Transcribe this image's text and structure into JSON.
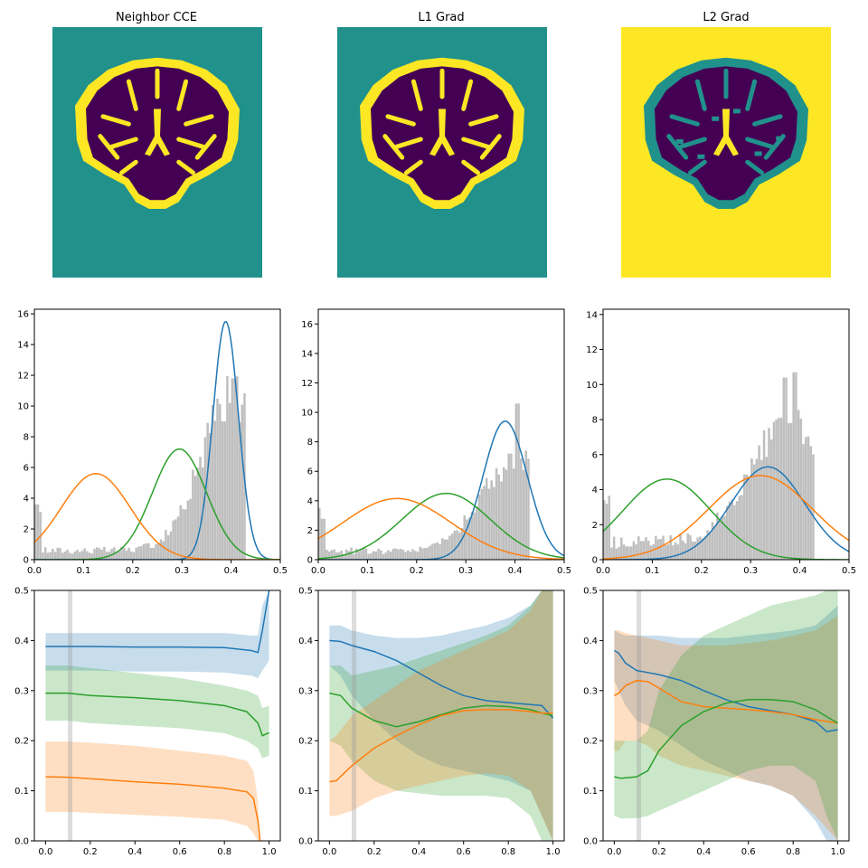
{
  "colors": {
    "viridis_dark": "#440154",
    "viridis_mid": "#21918c",
    "viridis_bright": "#fde725",
    "blue": "#1f77b4",
    "orange": "#ff7f0e",
    "green": "#2ca02c",
    "hist_gray": "#bfbfbf"
  },
  "chart_data": [
    {
      "type": "image",
      "title": "Neighbor CCE",
      "background": "teal",
      "brain_fill": "dark",
      "cortex": "yellow"
    },
    {
      "type": "image",
      "title": "L1 Grad",
      "background": "teal",
      "brain_fill": "dark",
      "cortex": "yellow"
    },
    {
      "type": "image",
      "title": "L2 Grad",
      "background": "yellow",
      "brain_fill": "dark",
      "cortex": "teal"
    },
    {
      "type": "histogram+line",
      "xlim": [
        0,
        0.5
      ],
      "ylim": [
        0,
        16.3
      ],
      "xticks": [
        0,
        0.1,
        0.2,
        0.3,
        0.4,
        0.5
      ],
      "yticks": [
        0,
        2,
        4,
        6,
        8,
        10,
        12,
        14,
        16
      ],
      "gaussians": [
        {
          "color": "blue",
          "mu": 0.389,
          "sigma": 0.026,
          "peak": 15.5
        },
        {
          "color": "green",
          "mu": 0.295,
          "sigma": 0.055,
          "peak": 7.2
        },
        {
          "color": "orange",
          "mu": 0.125,
          "sigma": 0.07,
          "peak": 5.6
        }
      ],
      "hist": {
        "low_level": 0.6,
        "peak_center": 0.405,
        "peak_height": 10.5,
        "spread": 0.065,
        "spikes": [
          [
            0.405,
            11.8
          ],
          [
            0.398,
            10.2
          ],
          [
            0.385,
            9.0
          ]
        ],
        "cutoff": 0.43
      }
    },
    {
      "type": "histogram+line",
      "xlim": [
        0,
        0.5
      ],
      "ylim": [
        0,
        17
      ],
      "xticks": [
        0,
        0.1,
        0.2,
        0.3,
        0.4,
        0.5
      ],
      "yticks": [
        0,
        2,
        4,
        6,
        8,
        10,
        12,
        14,
        16
      ],
      "gaussians": [
        {
          "color": "blue",
          "mu": 0.38,
          "sigma": 0.045,
          "peak": 9.4
        },
        {
          "color": "green",
          "mu": 0.26,
          "sigma": 0.09,
          "peak": 4.5
        },
        {
          "color": "orange",
          "mu": 0.16,
          "sigma": 0.11,
          "peak": 4.15
        }
      ],
      "hist": {
        "low_level": 0.6,
        "peak_center": 0.4,
        "peak_height": 6.2,
        "spread": 0.07,
        "spikes": [
          [
            0.405,
            10.6
          ],
          [
            0.39,
            7.2
          ]
        ],
        "cutoff": 0.43
      }
    },
    {
      "type": "histogram+line",
      "xlim": [
        0,
        0.5
      ],
      "ylim": [
        0,
        14.3
      ],
      "xticks": [
        0,
        0.1,
        0.2,
        0.3,
        0.4,
        0.5
      ],
      "yticks": [
        0,
        2,
        4,
        6,
        8,
        10,
        12,
        14
      ],
      "gaussians": [
        {
          "color": "blue",
          "mu": 0.335,
          "sigma": 0.075,
          "peak": 5.3
        },
        {
          "color": "orange",
          "mu": 0.32,
          "sigma": 0.105,
          "peak": 4.8
        },
        {
          "color": "green",
          "mu": 0.13,
          "sigma": 0.09,
          "peak": 4.6
        }
      ],
      "hist": {
        "low_level": 1.0,
        "peak_center": 0.38,
        "peak_height": 6.8,
        "spread": 0.08,
        "spikes": [
          [
            0.39,
            10.7
          ],
          [
            0.37,
            10.4
          ],
          [
            0.36,
            8.1
          ],
          [
            0.38,
            7.8
          ]
        ],
        "cutoff": 0.43
      }
    },
    {
      "type": "line+band",
      "xlim": [
        -0.05,
        1.05
      ],
      "ylim": [
        0,
        0.5
      ],
      "xticks": [
        0,
        0.2,
        0.4,
        0.6,
        0.8,
        1.0
      ],
      "yticks": [
        0,
        0.1,
        0.2,
        0.3,
        0.4,
        0.5
      ],
      "vline_x": 0.11,
      "series": [
        {
          "color": "blue",
          "x": [
            0,
            0.2,
            0.4,
            0.6,
            0.8,
            0.92,
            0.95,
            0.97,
            1.0
          ],
          "y": [
            0.388,
            0.388,
            0.387,
            0.387,
            0.386,
            0.38,
            0.376,
            0.42,
            0.5
          ],
          "lo": [
            0.34,
            0.34,
            0.338,
            0.338,
            0.336,
            0.33,
            0.325,
            0.34,
            0.36
          ],
          "hi": [
            0.415,
            0.415,
            0.415,
            0.415,
            0.415,
            0.41,
            0.41,
            0.47,
            0.5
          ]
        },
        {
          "color": "green",
          "x": [
            0,
            0.1,
            0.2,
            0.4,
            0.6,
            0.8,
            0.9,
            0.95,
            0.97,
            1.0
          ],
          "y": [
            0.295,
            0.295,
            0.29,
            0.286,
            0.28,
            0.27,
            0.258,
            0.235,
            0.21,
            0.216
          ],
          "lo": [
            0.24,
            0.24,
            0.235,
            0.23,
            0.225,
            0.215,
            0.2,
            0.185,
            0.165,
            0.17
          ],
          "hi": [
            0.35,
            0.35,
            0.345,
            0.335,
            0.325,
            0.31,
            0.3,
            0.29,
            0.265,
            0.27
          ]
        },
        {
          "color": "orange",
          "x": [
            0,
            0.1,
            0.2,
            0.4,
            0.6,
            0.8,
            0.9,
            0.93,
            0.95,
            0.96
          ],
          "y": [
            0.128,
            0.127,
            0.124,
            0.118,
            0.113,
            0.105,
            0.098,
            0.085,
            0.04,
            0.0
          ],
          "lo": [
            0.058,
            0.058,
            0.056,
            0.052,
            0.048,
            0.042,
            0.03,
            0.015,
            0.0,
            0.0
          ],
          "hi": [
            0.198,
            0.198,
            0.196,
            0.19,
            0.18,
            0.17,
            0.16,
            0.14,
            0.08,
            0.0
          ]
        }
      ]
    },
    {
      "type": "line+band",
      "xlim": [
        -0.05,
        1.05
      ],
      "ylim": [
        0,
        0.5
      ],
      "xticks": [
        0,
        0.2,
        0.4,
        0.6,
        0.8,
        1.0
      ],
      "yticks": [
        0,
        0.1,
        0.2,
        0.3,
        0.4,
        0.5
      ],
      "vline_x": 0.11,
      "series": [
        {
          "color": "blue",
          "x": [
            0,
            0.05,
            0.1,
            0.2,
            0.3,
            0.4,
            0.5,
            0.6,
            0.7,
            0.8,
            0.9,
            0.95,
            1.0
          ],
          "y": [
            0.4,
            0.398,
            0.39,
            0.378,
            0.36,
            0.335,
            0.31,
            0.29,
            0.28,
            0.276,
            0.272,
            0.27,
            0.245
          ],
          "lo": [
            0.35,
            0.33,
            0.29,
            0.24,
            0.2,
            0.17,
            0.15,
            0.14,
            0.13,
            0.12,
            0.1,
            0.05,
            0.0
          ],
          "hi": [
            0.43,
            0.43,
            0.42,
            0.41,
            0.405,
            0.405,
            0.41,
            0.42,
            0.43,
            0.445,
            0.47,
            0.5,
            0.5
          ]
        },
        {
          "color": "green",
          "x": [
            0,
            0.05,
            0.1,
            0.2,
            0.3,
            0.4,
            0.5,
            0.6,
            0.7,
            0.8,
            0.9,
            0.95,
            1.0
          ],
          "y": [
            0.295,
            0.29,
            0.265,
            0.24,
            0.228,
            0.238,
            0.252,
            0.265,
            0.27,
            0.268,
            0.262,
            0.255,
            0.25
          ],
          "lo": [
            0.2,
            0.19,
            0.16,
            0.12,
            0.1,
            0.095,
            0.09,
            0.09,
            0.09,
            0.085,
            0.05,
            0.0,
            0.0
          ],
          "hi": [
            0.35,
            0.35,
            0.33,
            0.34,
            0.35,
            0.365,
            0.38,
            0.395,
            0.41,
            0.43,
            0.47,
            0.5,
            0.5
          ]
        },
        {
          "color": "orange",
          "x": [
            0,
            0.03,
            0.1,
            0.2,
            0.3,
            0.4,
            0.5,
            0.6,
            0.7,
            0.8,
            0.9,
            0.95,
            1.0
          ],
          "y": [
            0.118,
            0.12,
            0.15,
            0.185,
            0.21,
            0.232,
            0.25,
            0.26,
            0.262,
            0.262,
            0.258,
            0.255,
            0.255
          ],
          "lo": [
            0.05,
            0.05,
            0.06,
            0.085,
            0.1,
            0.11,
            0.12,
            0.13,
            0.135,
            0.13,
            0.1,
            0.05,
            0.0
          ],
          "hi": [
            0.2,
            0.21,
            0.25,
            0.28,
            0.31,
            0.34,
            0.36,
            0.38,
            0.4,
            0.42,
            0.46,
            0.5,
            0.5
          ]
        }
      ]
    },
    {
      "type": "line+band",
      "xlim": [
        -0.05,
        1.05
      ],
      "ylim": [
        0,
        0.5
      ],
      "xticks": [
        0,
        0.2,
        0.4,
        0.6,
        0.8,
        1.0
      ],
      "yticks": [
        0,
        0.1,
        0.2,
        0.3,
        0.4,
        0.5
      ],
      "vline_x": 0.11,
      "series": [
        {
          "color": "blue",
          "x": [
            0,
            0.02,
            0.05,
            0.1,
            0.2,
            0.3,
            0.4,
            0.5,
            0.6,
            0.7,
            0.8,
            0.9,
            0.95,
            1.0
          ],
          "y": [
            0.38,
            0.375,
            0.355,
            0.34,
            0.332,
            0.32,
            0.3,
            0.282,
            0.268,
            0.26,
            0.252,
            0.238,
            0.218,
            0.222
          ],
          "lo": [
            0.32,
            0.3,
            0.27,
            0.24,
            0.22,
            0.19,
            0.16,
            0.14,
            0.12,
            0.11,
            0.09,
            0.04,
            0.0,
            0.0
          ],
          "hi": [
            0.42,
            0.415,
            0.41,
            0.41,
            0.41,
            0.405,
            0.405,
            0.405,
            0.41,
            0.415,
            0.42,
            0.43,
            0.45,
            0.47
          ]
        },
        {
          "color": "orange",
          "x": [
            0,
            0.02,
            0.05,
            0.1,
            0.15,
            0.2,
            0.3,
            0.4,
            0.5,
            0.6,
            0.7,
            0.8,
            0.9,
            1.0
          ],
          "y": [
            0.29,
            0.295,
            0.31,
            0.32,
            0.318,
            0.305,
            0.278,
            0.268,
            0.265,
            0.262,
            0.258,
            0.252,
            0.242,
            0.235
          ],
          "lo": [
            0.18,
            0.18,
            0.2,
            0.2,
            0.19,
            0.17,
            0.15,
            0.14,
            0.13,
            0.12,
            0.11,
            0.09,
            0.05,
            0.0
          ],
          "hi": [
            0.42,
            0.42,
            0.415,
            0.41,
            0.405,
            0.4,
            0.39,
            0.39,
            0.39,
            0.395,
            0.4,
            0.41,
            0.42,
            0.45
          ]
        },
        {
          "color": "green",
          "x": [
            0,
            0.03,
            0.1,
            0.15,
            0.2,
            0.3,
            0.4,
            0.5,
            0.6,
            0.7,
            0.8,
            0.9,
            0.95,
            1.0
          ],
          "y": [
            0.128,
            0.125,
            0.128,
            0.14,
            0.18,
            0.23,
            0.258,
            0.275,
            0.282,
            0.282,
            0.278,
            0.262,
            0.248,
            0.235
          ],
          "lo": [
            0.05,
            0.045,
            0.045,
            0.05,
            0.06,
            0.08,
            0.1,
            0.12,
            0.14,
            0.15,
            0.15,
            0.12,
            0.05,
            0.0
          ],
          "hi": [
            0.2,
            0.2,
            0.2,
            0.22,
            0.3,
            0.37,
            0.41,
            0.43,
            0.45,
            0.47,
            0.48,
            0.49,
            0.5,
            0.5
          ]
        }
      ]
    }
  ]
}
